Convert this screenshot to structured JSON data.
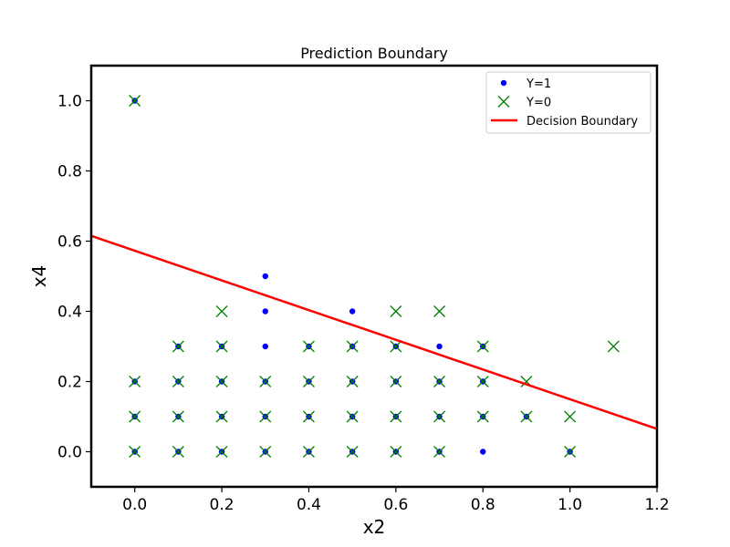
{
  "chart_data": {
    "type": "scatter",
    "title": "Prediction Boundary",
    "xlabel": "x2",
    "ylabel": "x4",
    "xlim": [
      -0.1,
      1.2
    ],
    "ylim": [
      -0.1,
      1.1
    ],
    "xticks": [
      "0.0",
      "0.2",
      "0.4",
      "0.6",
      "0.8",
      "1.0",
      "1.2"
    ],
    "yticks": [
      "0.0",
      "0.2",
      "0.4",
      "0.6",
      "0.8",
      "1.0"
    ],
    "legend_position": "top-right",
    "grid": false,
    "series": [
      {
        "name": "Y=1",
        "marker": "dot",
        "color": "#0000ff",
        "points": [
          [
            0.0,
            0.0
          ],
          [
            0.1,
            0.0
          ],
          [
            0.2,
            0.0
          ],
          [
            0.3,
            0.0
          ],
          [
            0.4,
            0.0
          ],
          [
            0.5,
            0.0
          ],
          [
            0.6,
            0.0
          ],
          [
            0.7,
            0.0
          ],
          [
            0.8,
            0.0
          ],
          [
            1.0,
            0.0
          ],
          [
            0.0,
            0.1
          ],
          [
            0.1,
            0.1
          ],
          [
            0.2,
            0.1
          ],
          [
            0.3,
            0.1
          ],
          [
            0.4,
            0.1
          ],
          [
            0.5,
            0.1
          ],
          [
            0.6,
            0.1
          ],
          [
            0.7,
            0.1
          ],
          [
            0.8,
            0.1
          ],
          [
            0.9,
            0.1
          ],
          [
            0.0,
            0.2
          ],
          [
            0.1,
            0.2
          ],
          [
            0.2,
            0.2
          ],
          [
            0.3,
            0.2
          ],
          [
            0.4,
            0.2
          ],
          [
            0.5,
            0.2
          ],
          [
            0.6,
            0.2
          ],
          [
            0.7,
            0.2
          ],
          [
            0.8,
            0.2
          ],
          [
            0.1,
            0.3
          ],
          [
            0.2,
            0.3
          ],
          [
            0.3,
            0.3
          ],
          [
            0.4,
            0.3
          ],
          [
            0.5,
            0.3
          ],
          [
            0.6,
            0.3
          ],
          [
            0.7,
            0.3
          ],
          [
            0.8,
            0.3
          ],
          [
            0.3,
            0.4
          ],
          [
            0.5,
            0.4
          ],
          [
            0.3,
            0.5
          ],
          [
            0.0,
            1.0
          ]
        ]
      },
      {
        "name": "Y=0",
        "marker": "x",
        "color": "#008000",
        "points": [
          [
            0.0,
            0.0
          ],
          [
            0.1,
            0.0
          ],
          [
            0.2,
            0.0
          ],
          [
            0.3,
            0.0
          ],
          [
            0.4,
            0.0
          ],
          [
            0.5,
            0.0
          ],
          [
            0.6,
            0.0
          ],
          [
            0.7,
            0.0
          ],
          [
            1.0,
            0.0
          ],
          [
            0.0,
            0.1
          ],
          [
            0.1,
            0.1
          ],
          [
            0.2,
            0.1
          ],
          [
            0.3,
            0.1
          ],
          [
            0.4,
            0.1
          ],
          [
            0.5,
            0.1
          ],
          [
            0.6,
            0.1
          ],
          [
            0.7,
            0.1
          ],
          [
            0.8,
            0.1
          ],
          [
            0.9,
            0.1
          ],
          [
            1.0,
            0.1
          ],
          [
            0.0,
            0.2
          ],
          [
            0.1,
            0.2
          ],
          [
            0.2,
            0.2
          ],
          [
            0.3,
            0.2
          ],
          [
            0.4,
            0.2
          ],
          [
            0.5,
            0.2
          ],
          [
            0.6,
            0.2
          ],
          [
            0.7,
            0.2
          ],
          [
            0.8,
            0.2
          ],
          [
            0.9,
            0.2
          ],
          [
            0.1,
            0.3
          ],
          [
            0.2,
            0.3
          ],
          [
            0.4,
            0.3
          ],
          [
            0.5,
            0.3
          ],
          [
            0.6,
            0.3
          ],
          [
            0.8,
            0.3
          ],
          [
            1.1,
            0.3
          ],
          [
            0.2,
            0.4
          ],
          [
            0.6,
            0.4
          ],
          [
            0.7,
            0.4
          ],
          [
            0.0,
            1.0
          ]
        ]
      },
      {
        "name": "Decision Boundary",
        "marker": "line",
        "color": "#ff0000",
        "points": [
          [
            -0.1,
            0.615
          ],
          [
            1.2,
            0.065
          ]
        ]
      }
    ]
  }
}
